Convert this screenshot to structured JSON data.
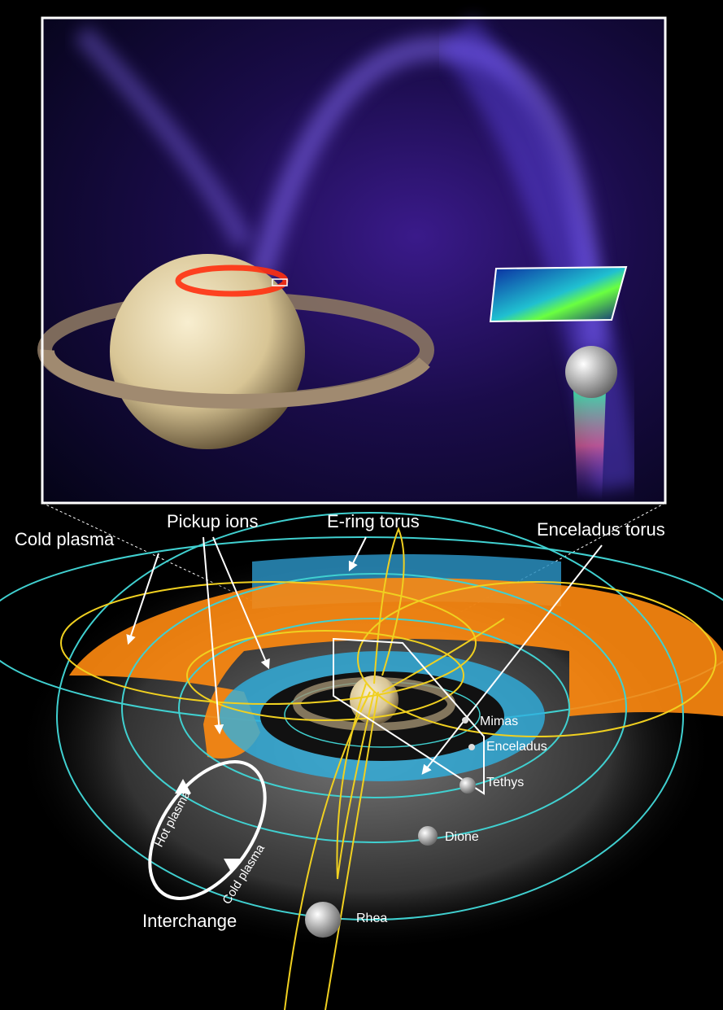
{
  "labels": {
    "cold_plasma": "Cold plasma",
    "pickup_ions": "Pickup ions",
    "e_ring_torus": "E-ring torus",
    "enceladus_torus": "Enceladus torus"
  },
  "moons": [
    {
      "name": "Mimas"
    },
    {
      "name": "Enceladus"
    },
    {
      "name": "Tethys"
    },
    {
      "name": "Dione"
    },
    {
      "name": "Rhea"
    }
  ],
  "interchange": {
    "title": "Interchange",
    "hot": "Hot plasma",
    "cold": "Cold plasma"
  }
}
